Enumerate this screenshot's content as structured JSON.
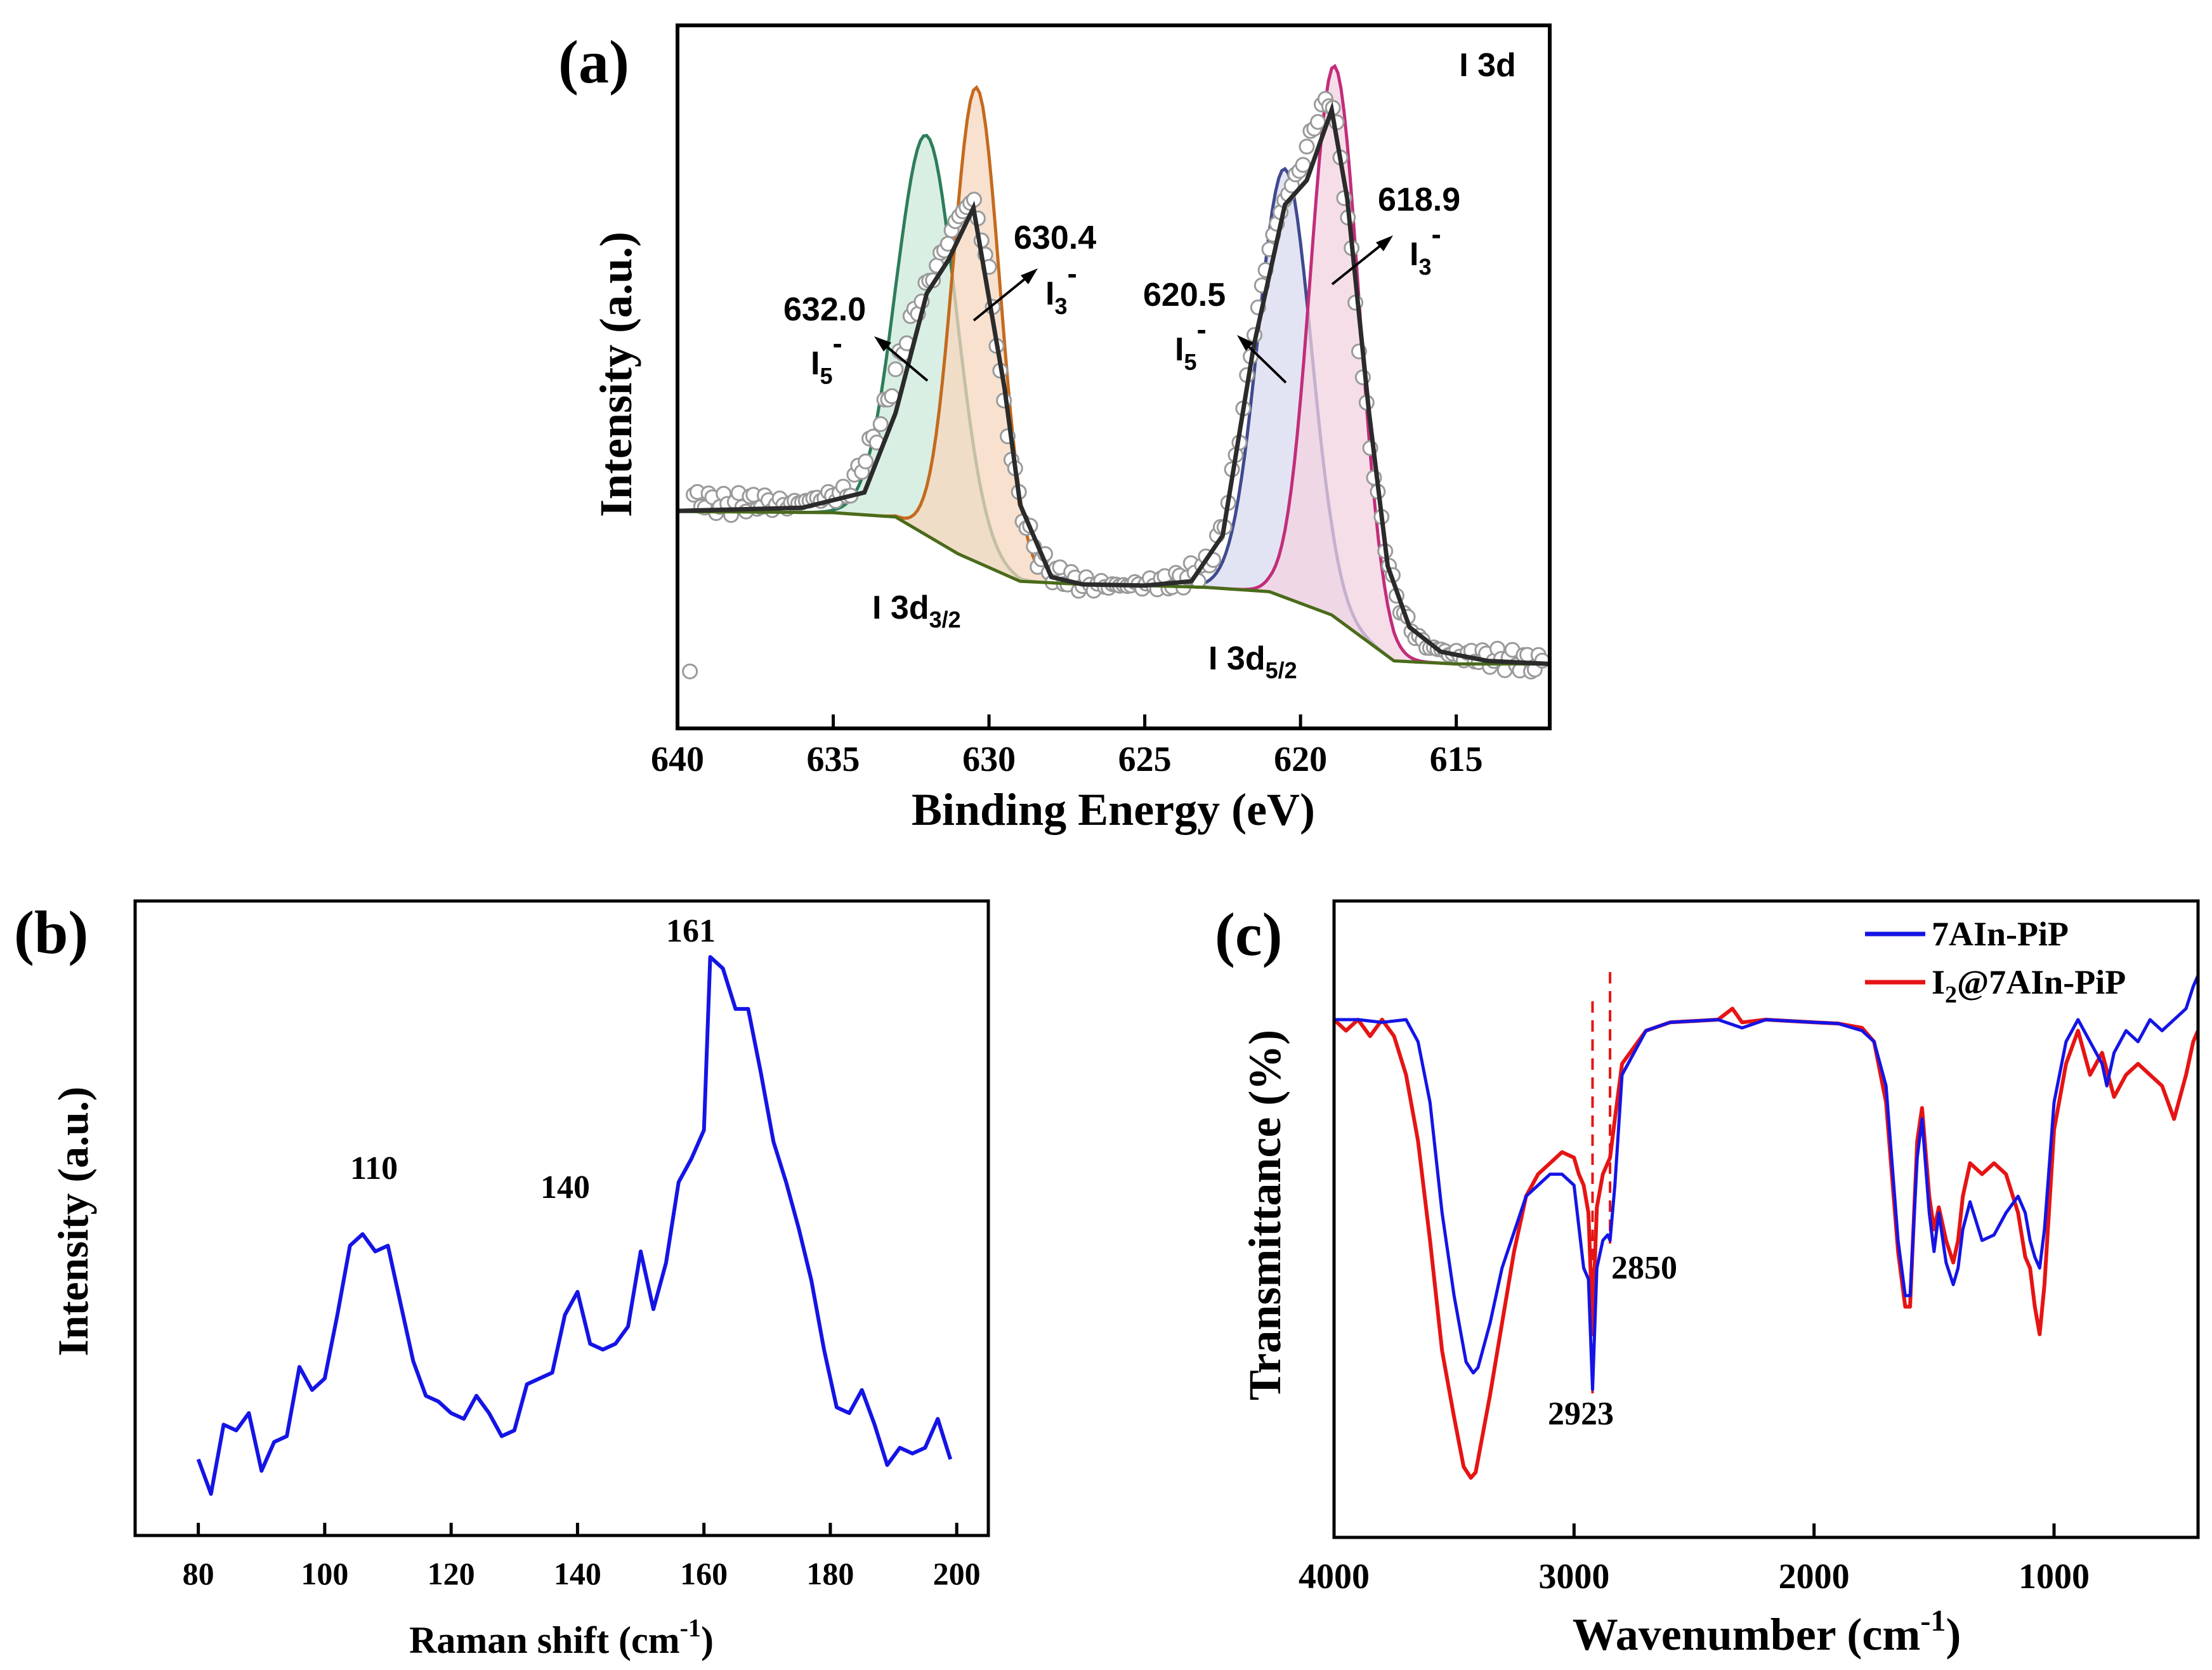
{
  "chart_data": [
    {
      "panel": "(a)",
      "type": "line",
      "title": "",
      "xlabel": "Binding Energy (eV)",
      "ylabel": "Intensity (a.u.)",
      "xlim": [
        640,
        612
      ],
      "ylim": [
        0,
        1
      ],
      "x_ticks": [
        "640",
        "635",
        "630",
        "625",
        "620",
        "615"
      ],
      "x_tick_values": [
        640,
        635,
        630,
        625,
        620,
        615
      ],
      "corner_label": "I 3d",
      "background": {
        "x": [
          640,
          635,
          633,
          631,
          629,
          627,
          625,
          623,
          621,
          619,
          617,
          615,
          612
        ],
        "y": [
          0.289,
          0.287,
          0.28,
          0.22,
          0.175,
          0.17,
          0.168,
          0.165,
          0.158,
          0.12,
          0.045,
          0.04,
          0.04
        ]
      },
      "envelope": {
        "x": [
          640,
          636,
          634,
          633,
          632,
          631.3,
          630.5,
          629.5,
          629,
          628,
          627,
          625,
          623.5,
          622.5,
          621.5,
          620.5,
          619.8,
          619,
          618.5,
          617.8,
          617.2,
          616.5,
          615.5,
          614,
          612
        ],
        "y": [
          0.29,
          0.295,
          0.32,
          0.45,
          0.645,
          0.7,
          0.785,
          0.49,
          0.3,
          0.182,
          0.17,
          0.168,
          0.175,
          0.25,
          0.56,
          0.79,
          0.83,
          0.945,
          0.8,
          0.45,
          0.2,
          0.1,
          0.06,
          0.045,
          0.04
        ]
      },
      "data_points_approx": {
        "x": [
          639.5,
          638.5,
          637.5,
          636.5,
          635.5,
          634.5,
          633.5,
          632.5,
          631.5,
          631,
          630.5,
          630,
          629.5,
          629,
          628.5,
          628,
          627.5,
          627,
          626,
          625,
          624,
          623,
          622.5,
          622,
          621.5,
          621,
          620.5,
          620,
          619.5,
          619,
          618.5,
          618,
          617.5,
          617,
          616.5,
          616,
          615,
          614,
          613,
          612.5
        ],
        "y": [
          0.31,
          0.3,
          0.305,
          0.3,
          0.31,
          0.32,
          0.43,
          0.6,
          0.71,
          0.77,
          0.8,
          0.68,
          0.45,
          0.3,
          0.22,
          0.19,
          0.18,
          0.17,
          0.168,
          0.17,
          0.175,
          0.2,
          0.26,
          0.4,
          0.58,
          0.72,
          0.8,
          0.85,
          0.93,
          0.97,
          0.78,
          0.5,
          0.3,
          0.16,
          0.1,
          0.07,
          0.055,
          0.05,
          0.045,
          0.04
        ]
      },
      "peaks": [
        {
          "name": "632.0 I5-",
          "center": 632.0,
          "height": 0.653,
          "sigma": 0.95,
          "color": "#2e7d5b",
          "fill": "#cde9d9"
        },
        {
          "name": "630.4 I3-",
          "center": 630.4,
          "height": 0.775,
          "sigma": 0.75,
          "color": "#c46a1e",
          "fill": "#f6d7bf"
        },
        {
          "name": "620.5 I5-",
          "center": 620.5,
          "height": 0.7,
          "sigma": 0.85,
          "color": "#3f4a8f",
          "fill": "#d9dbef"
        },
        {
          "name": "618.9 I3-",
          "center": 618.9,
          "height": 0.9,
          "sigma": 0.78,
          "color": "#c22d7a",
          "fill": "#f3d3e2"
        }
      ],
      "annotations": {
        "p1_value": "632.0",
        "p1_ion": "I",
        "p1_sub": "5",
        "p1_sup": "-",
        "p2_value": "630.4",
        "p2_ion": "I",
        "p2_sub": "3",
        "p2_sup": "-",
        "p3_value": "620.5",
        "p3_ion": "I",
        "p3_sub": "5",
        "p3_sup": "-",
        "p4_value": "618.9",
        "p4_ion": "I",
        "p4_sub": "3",
        "p4_sup": "-",
        "d32_main": "I 3d",
        "d32_sub": "3/2",
        "d52_main": "I 3d",
        "d52_sub": "5/2"
      }
    },
    {
      "panel": "(b)",
      "type": "line",
      "title": "",
      "xlabel_main": "Raman shift (cm",
      "xlabel_sup": "-1",
      "xlabel_end": ")",
      "ylabel": "Intensity (a.u.)",
      "xlim": [
        70,
        205
      ],
      "ylim": [
        0,
        1
      ],
      "x_ticks": [
        "80",
        "100",
        "120",
        "140",
        "160",
        "180",
        "200"
      ],
      "x_tick_values": [
        80,
        100,
        120,
        140,
        160,
        180,
        200
      ],
      "series": [
        {
          "name": "Raman",
          "color": "#1414e6",
          "x": [
            80,
            82,
            84,
            86,
            88,
            90,
            92,
            94,
            96,
            98,
            100,
            102,
            104,
            106,
            108,
            110,
            112,
            114,
            116,
            118,
            120,
            122,
            124,
            126,
            128,
            130,
            132,
            134,
            136,
            138,
            140,
            142,
            144,
            146,
            148,
            150,
            152,
            154,
            156,
            158,
            160,
            161,
            163,
            165,
            167,
            169,
            171,
            173,
            175,
            177,
            179,
            181,
            183,
            185,
            187,
            189,
            191,
            193,
            195,
            197,
            199
          ],
          "y": [
            0.11,
            0.05,
            0.17,
            0.16,
            0.19,
            0.09,
            0.14,
            0.15,
            0.27,
            0.23,
            0.25,
            0.36,
            0.48,
            0.5,
            0.47,
            0.48,
            0.38,
            0.28,
            0.22,
            0.21,
            0.19,
            0.18,
            0.22,
            0.19,
            0.15,
            0.16,
            0.24,
            0.25,
            0.26,
            0.36,
            0.4,
            0.31,
            0.3,
            0.31,
            0.34,
            0.47,
            0.37,
            0.45,
            0.59,
            0.63,
            0.68,
            0.98,
            0.96,
            0.89,
            0.89,
            0.78,
            0.66,
            0.59,
            0.51,
            0.42,
            0.3,
            0.2,
            0.19,
            0.23,
            0.17,
            0.1,
            0.13,
            0.12,
            0.13,
            0.18,
            0.11
          ]
        }
      ],
      "annotations": {
        "a110": "110",
        "a140": "140",
        "a161": "161"
      }
    },
    {
      "panel": "(c)",
      "type": "line",
      "title": "",
      "xlabel_main": "Wavenumber (cm",
      "xlabel_sup": "-1",
      "xlabel_end": ")",
      "ylabel": "Transmittance (%)",
      "xlim": [
        4000,
        400
      ],
      "ylim": [
        0,
        1
      ],
      "x_ticks": [
        "4000",
        "3000",
        "2000",
        "1000"
      ],
      "x_tick_values": [
        4000,
        3000,
        2000,
        1000
      ],
      "legend_position": "top-right",
      "legend": [
        {
          "label": "7AIn-PiP",
          "color": "#1414e6"
        },
        {
          "label_pre": "I",
          "label_sub": "2",
          "label_post": "@7AIn-PiP",
          "color": "#e61414"
        }
      ],
      "series": [
        {
          "name": "7AIn-PiP",
          "color": "#1414e6",
          "x": [
            4000,
            3900,
            3800,
            3700,
            3650,
            3600,
            3550,
            3500,
            3450,
            3420,
            3400,
            3350,
            3300,
            3200,
            3100,
            3050,
            3000,
            2960,
            2940,
            2923,
            2905,
            2880,
            2860,
            2850,
            2830,
            2800,
            2700,
            2600,
            2400,
            2300,
            2200,
            2000,
            1900,
            1800,
            1750,
            1700,
            1650,
            1620,
            1600,
            1570,
            1550,
            1520,
            1500,
            1480,
            1450,
            1420,
            1400,
            1380,
            1350,
            1300,
            1250,
            1200,
            1150,
            1120,
            1100,
            1080,
            1060,
            1040,
            1000,
            950,
            900,
            850,
            800,
            780,
            750,
            700,
            650,
            600,
            550,
            500,
            450,
            420,
            400
          ],
          "y": [
            0.9,
            0.9,
            0.895,
            0.9,
            0.86,
            0.75,
            0.55,
            0.4,
            0.28,
            0.26,
            0.27,
            0.35,
            0.45,
            0.58,
            0.62,
            0.62,
            0.6,
            0.45,
            0.43,
            0.23,
            0.45,
            0.5,
            0.51,
            0.5,
            0.6,
            0.8,
            0.88,
            0.895,
            0.9,
            0.885,
            0.9,
            0.895,
            0.893,
            0.88,
            0.86,
            0.78,
            0.5,
            0.4,
            0.4,
            0.65,
            0.72,
            0.55,
            0.48,
            0.55,
            0.46,
            0.42,
            0.45,
            0.52,
            0.57,
            0.5,
            0.51,
            0.55,
            0.58,
            0.55,
            0.5,
            0.47,
            0.45,
            0.52,
            0.75,
            0.86,
            0.9,
            0.86,
            0.82,
            0.78,
            0.84,
            0.88,
            0.86,
            0.9,
            0.88,
            0.9,
            0.92,
            0.96,
            0.98
          ]
        },
        {
          "name": "I2@7AIn-PiP",
          "color": "#e61414",
          "x": [
            4000,
            3950,
            3900,
            3850,
            3800,
            3750,
            3700,
            3650,
            3600,
            3550,
            3500,
            3460,
            3430,
            3410,
            3380,
            3350,
            3300,
            3250,
            3200,
            3150,
            3100,
            3050,
            3000,
            2980,
            2960,
            2940,
            2923,
            2905,
            2880,
            2860,
            2850,
            2830,
            2800,
            2700,
            2600,
            2400,
            2340,
            2300,
            2200,
            2000,
            1900,
            1800,
            1750,
            1700,
            1650,
            1620,
            1600,
            1570,
            1550,
            1520,
            1500,
            1480,
            1450,
            1420,
            1400,
            1380,
            1350,
            1300,
            1250,
            1200,
            1150,
            1120,
            1100,
            1080,
            1060,
            1040,
            1000,
            950,
            900,
            850,
            800,
            750,
            700,
            650,
            600,
            550,
            500,
            450,
            420,
            400
          ],
          "y": [
            0.9,
            0.88,
            0.9,
            0.87,
            0.9,
            0.87,
            0.8,
            0.68,
            0.5,
            0.3,
            0.18,
            0.09,
            0.07,
            0.08,
            0.15,
            0.22,
            0.35,
            0.48,
            0.58,
            0.62,
            0.64,
            0.66,
            0.65,
            0.62,
            0.6,
            0.55,
            0.35,
            0.56,
            0.62,
            0.64,
            0.65,
            0.72,
            0.82,
            0.88,
            0.895,
            0.9,
            0.92,
            0.895,
            0.9,
            0.895,
            0.893,
            0.885,
            0.86,
            0.75,
            0.48,
            0.38,
            0.38,
            0.68,
            0.74,
            0.58,
            0.52,
            0.56,
            0.5,
            0.46,
            0.5,
            0.58,
            0.64,
            0.62,
            0.64,
            0.62,
            0.55,
            0.47,
            0.45,
            0.38,
            0.33,
            0.42,
            0.7,
            0.82,
            0.88,
            0.8,
            0.84,
            0.76,
            0.8,
            0.82,
            0.8,
            0.78,
            0.72,
            0.8,
            0.86,
            0.88
          ]
        }
      ],
      "dashed_lines": [
        2923,
        2850
      ],
      "annotations": {
        "a2923": "2923",
        "a2850": "2850"
      }
    }
  ]
}
